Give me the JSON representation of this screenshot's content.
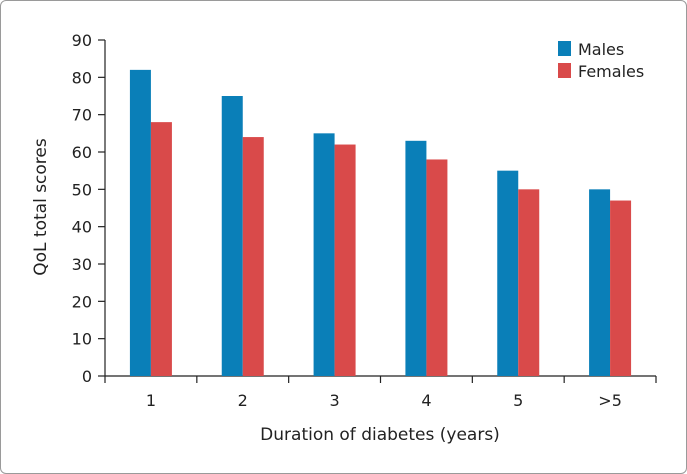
{
  "chart_data": {
    "type": "bar",
    "title": "",
    "xlabel": "Duration of diabetes (years)",
    "ylabel": "QoL total scores",
    "categories": [
      "1",
      "2",
      "3",
      "4",
      "5",
      ">5"
    ],
    "series": [
      {
        "name": "Males",
        "color": "#0a7fb8",
        "values": [
          82,
          75,
          65,
          63,
          55,
          50
        ]
      },
      {
        "name": "Females",
        "color": "#d94a4a",
        "values": [
          68,
          64,
          62,
          58,
          50,
          47
        ]
      }
    ],
    "ylim": [
      0,
      90
    ],
    "yticks": [
      0,
      10,
      20,
      30,
      40,
      50,
      60,
      70,
      80,
      90
    ],
    "grid": false,
    "legend": "top-right"
  }
}
